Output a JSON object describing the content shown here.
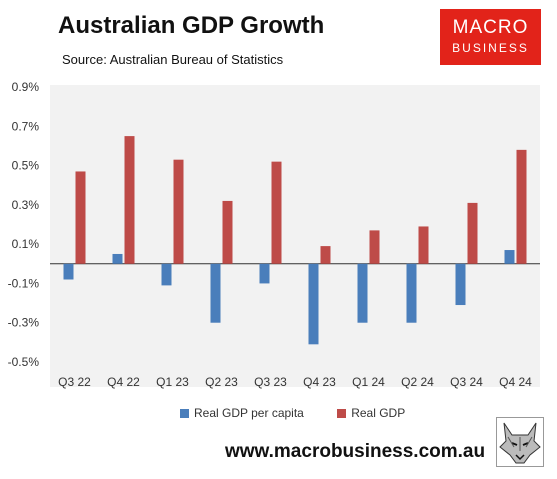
{
  "header": {
    "title": "Australian GDP Growth",
    "subtitle": "Source: Australian Bureau of Statistics"
  },
  "logo": {
    "line1": "MACRO",
    "line2": "BUSINESS",
    "color": "#e2231a"
  },
  "footer": {
    "url": "www.macrobusiness.com.au"
  },
  "chart_data": {
    "type": "bar",
    "title": "Australian GDP Growth",
    "xlabel": "",
    "ylabel": "",
    "categories": [
      "Q3 22",
      "Q4 22",
      "Q1 23",
      "Q2 23",
      "Q3 23",
      "Q4 23",
      "Q1 24",
      "Q2 24",
      "Q3 24",
      "Q4 24"
    ],
    "series": [
      {
        "name": "Real GDP per capita",
        "color": "#4a7ebb",
        "values": [
          -0.08,
          0.05,
          -0.11,
          -0.3,
          -0.1,
          -0.41,
          -0.3,
          -0.3,
          -0.21,
          0.07
        ]
      },
      {
        "name": "Real GDP",
        "color": "#be4b48",
        "values": [
          0.47,
          0.65,
          0.53,
          0.32,
          0.52,
          0.09,
          0.17,
          0.19,
          0.31,
          0.58
        ]
      }
    ],
    "ylim": [
      -0.5,
      0.9
    ],
    "yticks": [
      -0.5,
      -0.3,
      -0.1,
      0.1,
      0.3,
      0.5,
      0.7,
      0.9
    ],
    "ytick_labels": [
      "-0.5%",
      "-0.3%",
      "-0.1%",
      "0.1%",
      "0.3%",
      "0.5%",
      "0.7%",
      "0.9%"
    ],
    "grid": false,
    "legend_position": "bottom"
  }
}
